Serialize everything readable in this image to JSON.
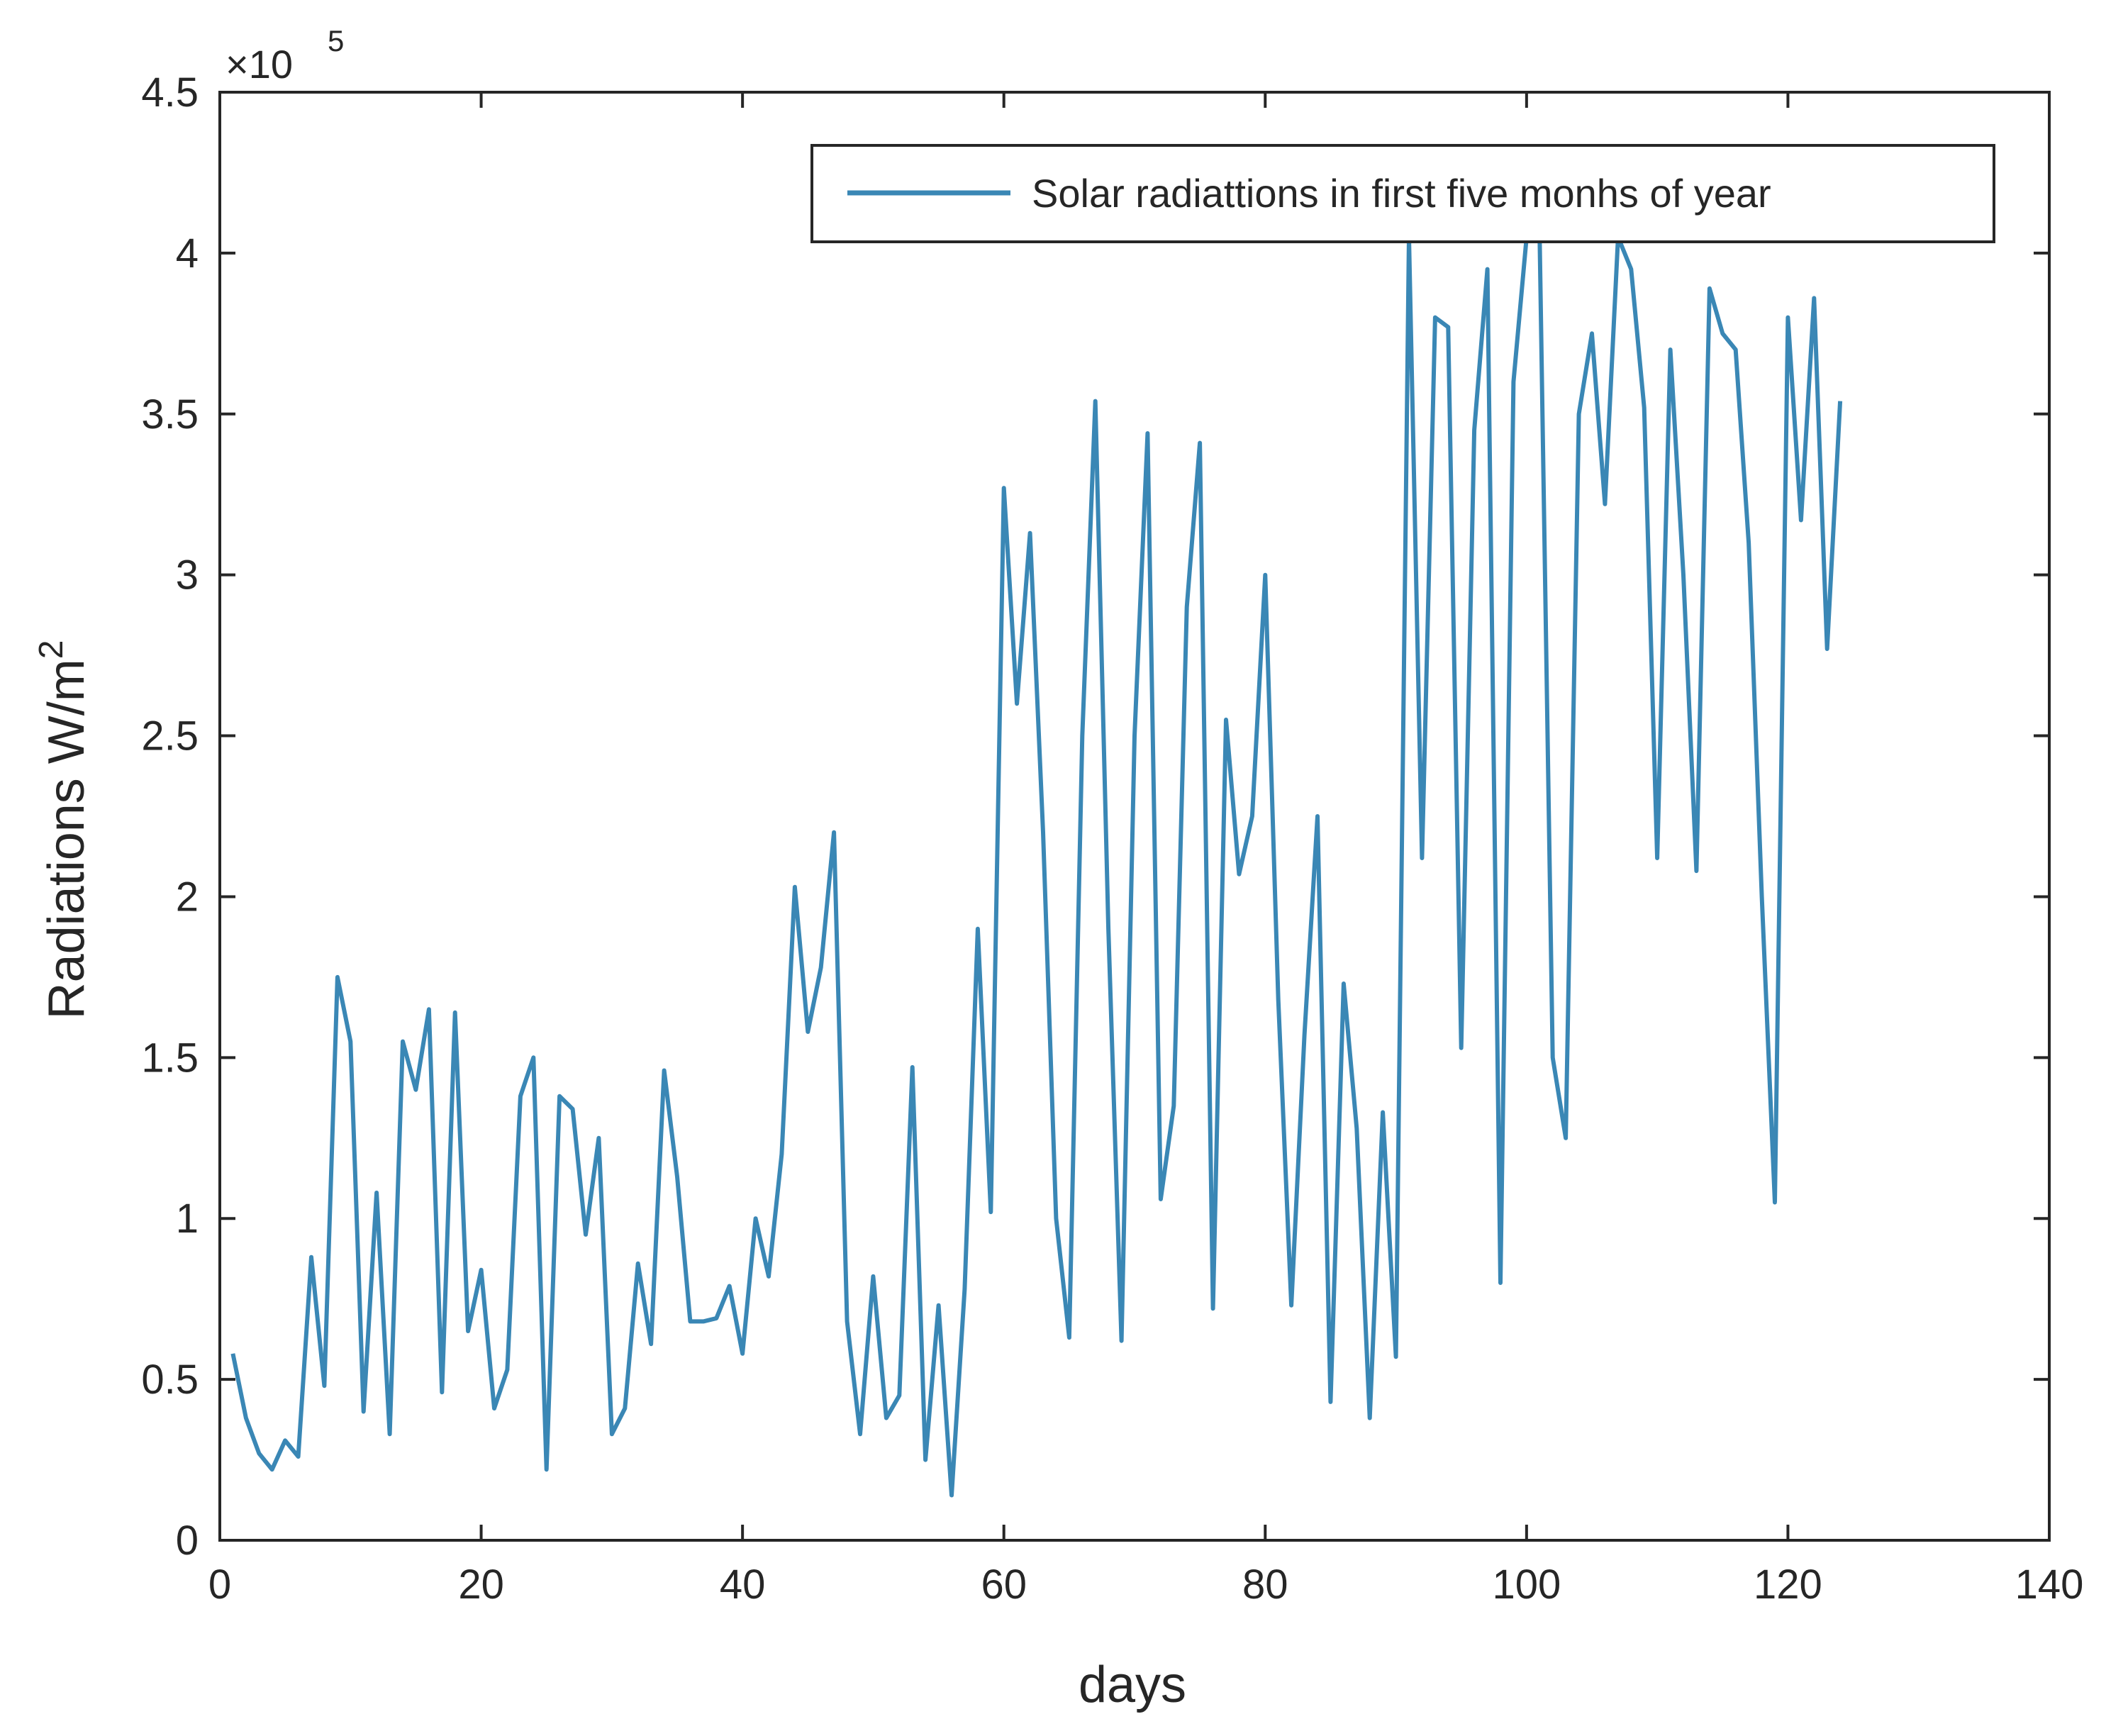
{
  "colors": {
    "line": "#3a87b5",
    "axis": "#262626",
    "background": "#ffffff"
  },
  "chart_data": {
    "type": "line",
    "title": "",
    "xlabel": "days",
    "ylabel": "Radiations W/m",
    "ylabel_superscript": "2",
    "y_exponent_prefix": "×10",
    "y_exponent_power": "5",
    "xlim": [
      0,
      140
    ],
    "ylim": [
      0,
      4.5
    ],
    "xticks": [
      0,
      20,
      40,
      60,
      80,
      100,
      120,
      140
    ],
    "yticks": [
      0,
      0.5,
      1,
      1.5,
      2,
      2.5,
      3,
      3.5,
      4,
      4.5
    ],
    "xtick_labels": [
      "0",
      "20",
      "40",
      "60",
      "80",
      "100",
      "120",
      "140"
    ],
    "ytick_labels": [
      "0",
      "0.5",
      "1",
      "1.5",
      "2",
      "2.5",
      "3",
      "3.5",
      "4",
      "4.5"
    ],
    "grid": false,
    "legend_position": "top-right",
    "series": [
      {
        "name": "Solar radiattions in first five monhs of year",
        "x": [
          1,
          2,
          3,
          4,
          5,
          6,
          7,
          8,
          9,
          10,
          11,
          12,
          13,
          14,
          15,
          16,
          17,
          18,
          19,
          20,
          21,
          22,
          23,
          24,
          25,
          26,
          27,
          28,
          29,
          30,
          31,
          32,
          33,
          34,
          35,
          36,
          37,
          38,
          39,
          40,
          41,
          42,
          43,
          44,
          45,
          46,
          47,
          48,
          49,
          50,
          51,
          52,
          53,
          54,
          55,
          56,
          57,
          58,
          59,
          60,
          61,
          62,
          63,
          64,
          65,
          66,
          67,
          68,
          69,
          70,
          71,
          72,
          73,
          74,
          75,
          76,
          77,
          78,
          79,
          80,
          81,
          82,
          83,
          84,
          85,
          86,
          87,
          88,
          89,
          90,
          91,
          92,
          93,
          94,
          95,
          96,
          97,
          98,
          99,
          100,
          101,
          102,
          103,
          104,
          105,
          106,
          107,
          108,
          109,
          110,
          111,
          112,
          113,
          114,
          115,
          116,
          117,
          118,
          119,
          120,
          121,
          122,
          123,
          124
        ],
        "values": [
          0.58,
          0.38,
          0.27,
          0.22,
          0.31,
          0.26,
          0.88,
          0.48,
          1.75,
          1.55,
          0.4,
          1.08,
          0.33,
          1.55,
          1.4,
          1.65,
          0.46,
          1.64,
          0.65,
          0.84,
          0.41,
          0.53,
          1.38,
          1.5,
          0.22,
          1.38,
          1.34,
          0.95,
          1.25,
          0.33,
          0.41,
          0.86,
          0.61,
          1.46,
          1.13,
          0.68,
          0.68,
          0.69,
          0.79,
          0.58,
          1.0,
          0.82,
          1.2,
          2.03,
          1.58,
          1.78,
          2.2,
          0.68,
          0.33,
          0.82,
          0.38,
          0.45,
          1.47,
          0.25,
          0.73,
          0.14,
          0.78,
          1.9,
          1.02,
          3.27,
          2.6,
          3.13,
          2.2,
          1.0,
          0.63,
          2.5,
          3.54,
          1.9,
          0.62,
          2.5,
          3.44,
          1.06,
          1.35,
          2.9,
          3.41,
          0.72,
          2.55,
          2.07,
          2.25,
          3.0,
          1.68,
          0.73,
          1.57,
          2.25,
          0.43,
          1.73,
          1.28,
          0.38,
          1.33,
          0.57,
          4.05,
          2.12,
          3.8,
          3.77,
          1.53,
          3.45,
          3.95,
          0.8,
          3.6,
          4.05,
          4.05,
          1.5,
          1.25,
          3.5,
          3.75,
          3.22,
          4.05,
          3.95,
          3.52,
          2.12,
          3.7,
          3.0,
          2.08,
          3.89,
          3.75,
          3.7,
          3.1,
          2.0,
          1.05,
          3.8,
          3.17,
          3.86,
          2.77,
          3.54
        ]
      }
    ]
  }
}
